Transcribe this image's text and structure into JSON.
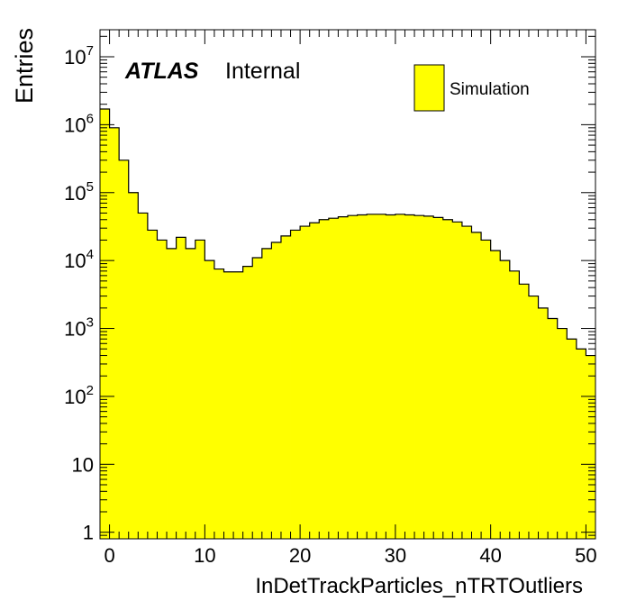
{
  "chart_data": {
    "type": "bar",
    "title": "",
    "xlabel": "InDetTrackParticles_nTRTOutliers",
    "ylabel": "Entries",
    "xlim": [
      -1,
      51
    ],
    "ylim": [
      0.8,
      25000000
    ],
    "yscale": "log",
    "grid": false,
    "legend_position": "top-right",
    "fill_color": "#ffff00",
    "line_color": "#000000",
    "atlas_label": {
      "bold": "ATLAS",
      "text": "Internal"
    },
    "legend": [
      {
        "label": "Simulation",
        "color": "#ffff00"
      }
    ],
    "x_ticks": [
      {
        "value": 0,
        "label": "0"
      },
      {
        "value": 10,
        "label": "10"
      },
      {
        "value": 20,
        "label": "20"
      },
      {
        "value": 30,
        "label": "30"
      },
      {
        "value": 40,
        "label": "40"
      },
      {
        "value": 50,
        "label": "50"
      }
    ],
    "y_ticks": [
      {
        "value": 1,
        "label": "1"
      },
      {
        "value": 10,
        "label": "10"
      },
      {
        "value": 100,
        "label": "10",
        "exp": "2"
      },
      {
        "value": 1000,
        "label": "10",
        "exp": "3"
      },
      {
        "value": 10000,
        "label": "10",
        "exp": "4"
      },
      {
        "value": 100000,
        "label": "10",
        "exp": "5"
      },
      {
        "value": 1000000,
        "label": "10",
        "exp": "6"
      },
      {
        "value": 10000000,
        "label": "10",
        "exp": "7"
      }
    ],
    "bins": {
      "edges": [
        -1,
        0,
        1,
        2,
        3,
        4,
        5,
        6,
        7,
        8,
        9,
        10,
        11,
        12,
        13,
        14,
        15,
        16,
        17,
        18,
        19,
        20,
        21,
        22,
        23,
        24,
        25,
        26,
        27,
        28,
        29,
        30,
        31,
        32,
        33,
        34,
        35,
        36,
        37,
        38,
        39,
        40,
        41,
        42,
        43,
        44,
        45,
        46,
        47,
        48,
        49,
        50,
        51
      ],
      "values": [
        1700000,
        900000,
        300000,
        100000,
        50000,
        28000,
        20000,
        15000,
        22000,
        15000,
        20000,
        10000,
        7500,
        6800,
        6800,
        8200,
        11000,
        15000,
        18500,
        23000,
        28000,
        32000,
        36000,
        40000,
        42000,
        44000,
        46000,
        47000,
        48000,
        48000,
        47000,
        48000,
        47000,
        46000,
        45000,
        43000,
        40000,
        37000,
        32000,
        26000,
        20000,
        14000,
        10000,
        7000,
        4500,
        3000,
        2000,
        1400,
        1000,
        700,
        500,
        400
      ]
    }
  }
}
